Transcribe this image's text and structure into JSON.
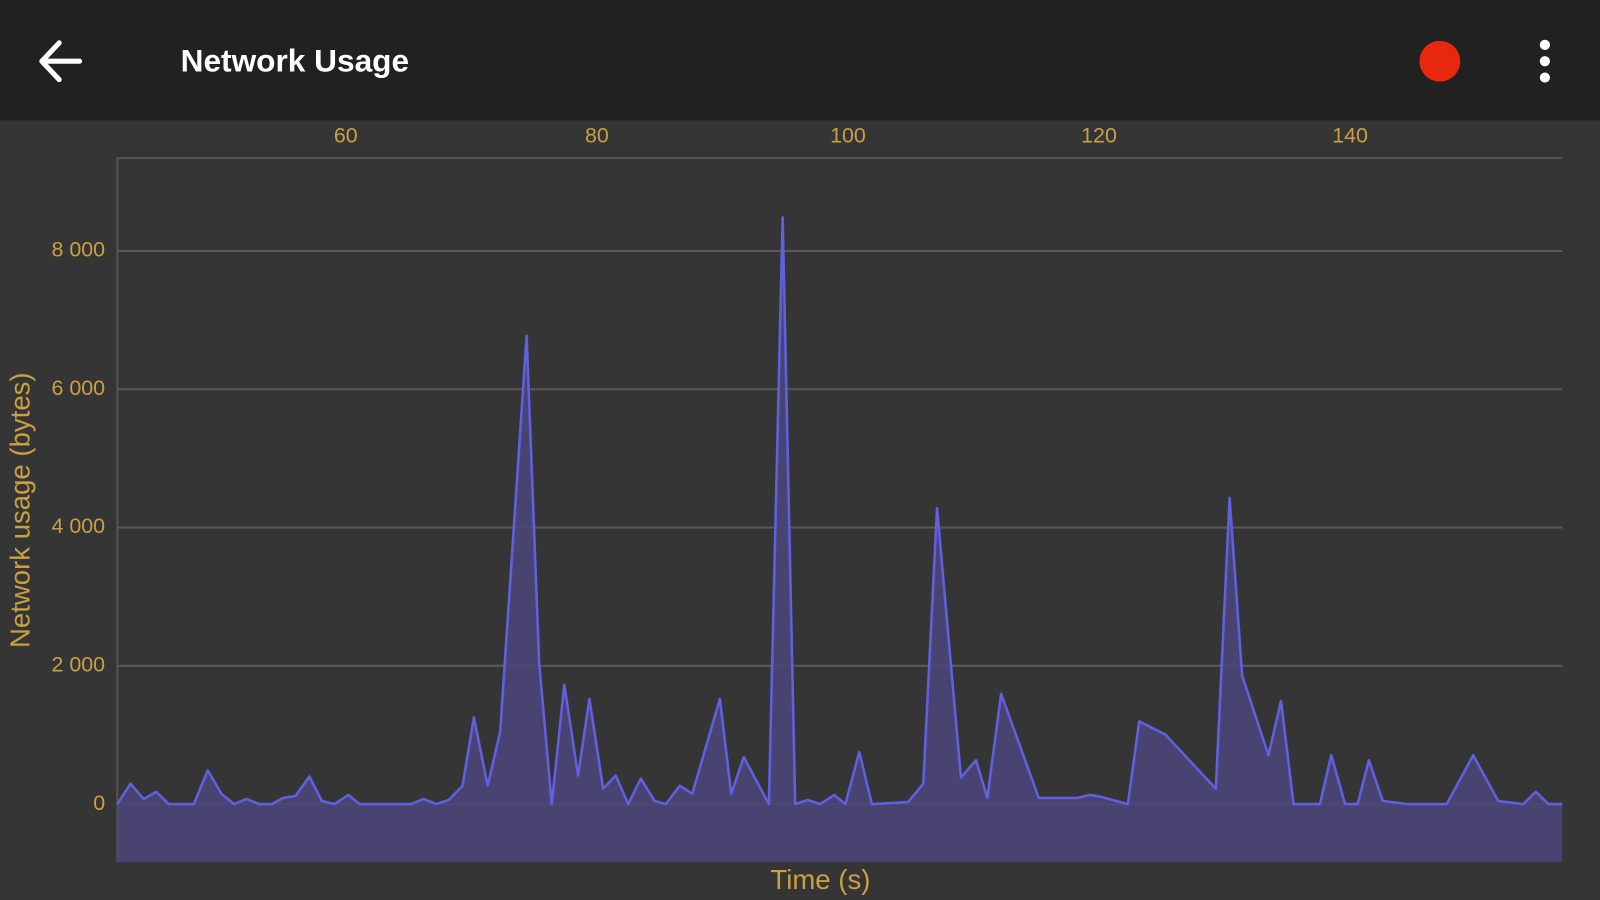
{
  "app_bar": {
    "title": "Network Usage"
  },
  "chart_data": {
    "type": "area",
    "x_label": "Time (s)",
    "y_label": "Network usage (bytes)",
    "x": [
      41.8,
      42.85,
      43.9,
      44.9,
      45.9,
      47.9,
      49.0,
      50.1,
      51.1,
      52.1,
      53.1,
      54.1,
      55.0,
      56.0,
      57.1,
      58.1,
      59.1,
      60.2,
      61.1,
      65.2,
      66.2,
      67.2,
      68.2,
      69.3,
      70.2,
      71.3,
      72.3,
      74.4,
      75.4,
      76.4,
      77.4,
      78.5,
      79.4,
      80.5,
      81.5,
      82.5,
      83.5,
      84.6,
      85.5,
      86.6,
      87.6,
      89.8,
      90.7,
      91.7,
      93.7,
      94.8,
      95.8,
      96.8,
      97.8,
      98.9,
      99.8,
      100.9,
      101.9,
      104.8,
      106.0,
      107.1,
      109.0,
      110.2,
      111.1,
      112.2,
      115.2,
      118.2,
      119.3,
      120.2,
      122.3,
      123.2,
      125.3,
      129.3,
      130.4,
      131.4,
      133.5,
      134.5,
      135.5,
      137.6,
      138.5,
      139.6,
      140.6,
      141.5,
      142.6,
      144.6,
      147.7,
      149.8,
      151.8,
      153.8,
      154.8,
      155.8,
      156.9
    ],
    "series": [
      {
        "name": "Network usage",
        "color": "#6060e0",
        "fill": "#4a4578",
        "values": [
          0,
          295,
          74,
          177,
          0,
          0,
          487,
          148,
          0,
          74,
          0,
          0,
          89,
          118,
          399,
          44,
          0,
          133,
          0,
          0,
          74,
          0,
          59,
          266,
          1255,
          266,
          1048,
          6775,
          2037,
          0,
          1727,
          413,
          1520,
          221,
          413,
          0,
          369,
          44,
          0,
          266,
          148,
          1520,
          148,
          679,
          0,
          8487,
          0,
          59,
          0,
          133,
          0,
          753,
          0,
          30,
          295,
          4280,
          384,
          635,
          89,
          1594,
          89,
          89,
          133,
          103,
          0,
          1196,
          1004,
          221,
          4428,
          1860,
          708,
          1491,
          0,
          0,
          708,
          0,
          0,
          635,
          44,
          0,
          0,
          708,
          44,
          0,
          177,
          0,
          0
        ]
      }
    ],
    "xlim": [
      41.8,
      156.9
    ],
    "xticks": [
      60,
      80,
      100,
      120,
      140
    ],
    "ylim": [
      -841,
      9343
    ],
    "yticks": [
      0,
      {
        "value": 2000,
        "label": "2 000"
      },
      {
        "value": 4000,
        "label": "4 000"
      },
      {
        "value": 6000,
        "label": "6 000"
      },
      {
        "value": 8000,
        "label": "8 000"
      }
    ],
    "grid": true
  }
}
